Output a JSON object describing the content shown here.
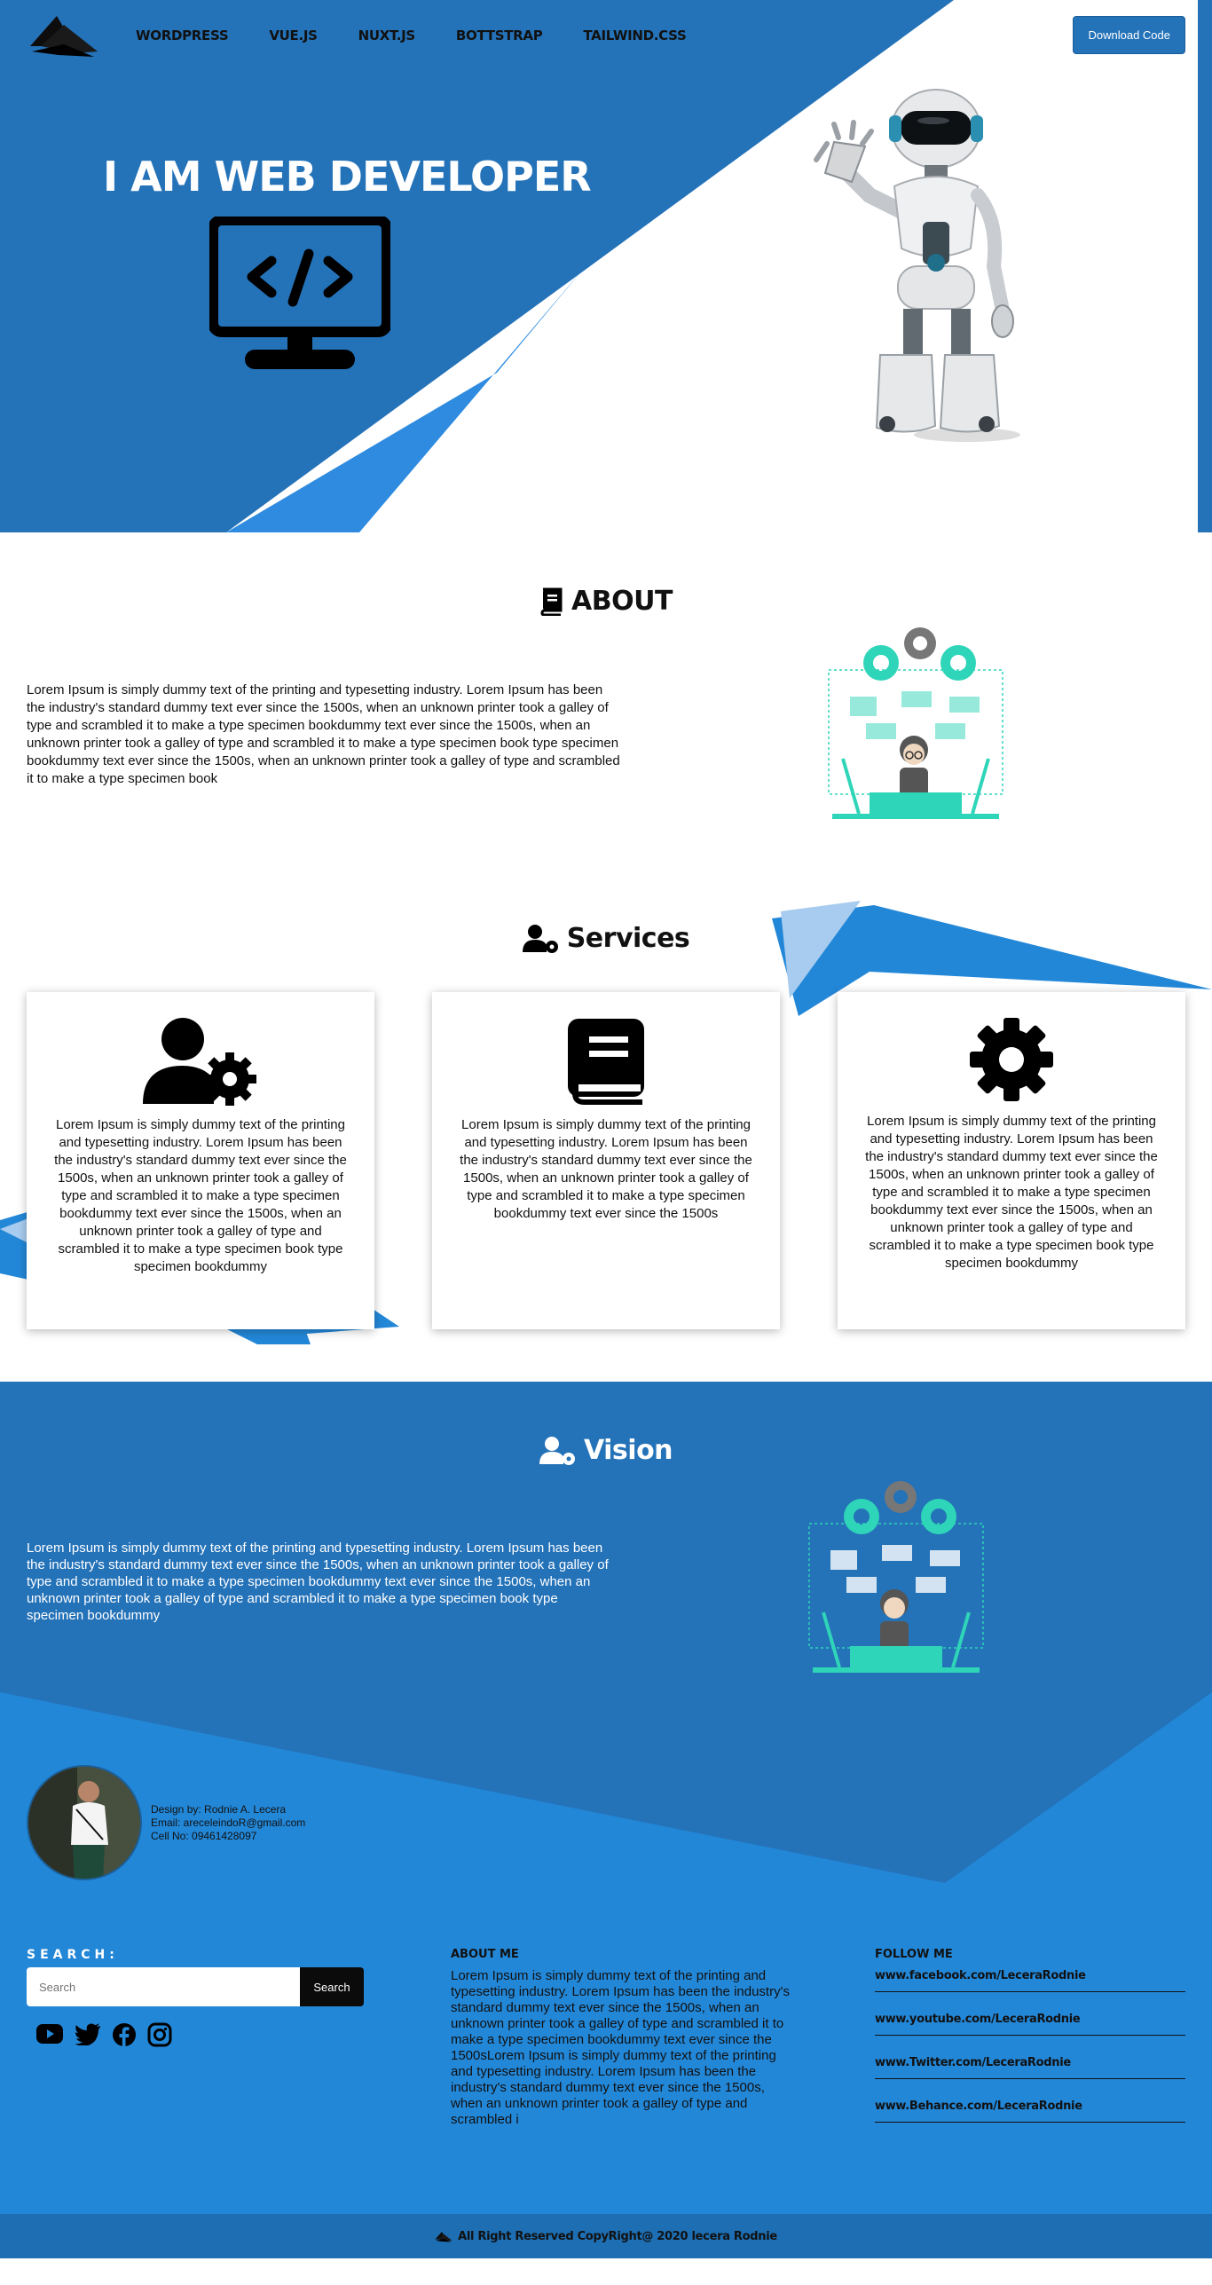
{
  "nav": {
    "links": [
      "WORDPRESS",
      "VUE.JS",
      "NUXT.JS",
      "BOTTSTRAP",
      "TAILWIND.CSS"
    ],
    "download_label": "Download Code"
  },
  "hero": {
    "title": "I AM WEB DEVELOPER"
  },
  "about": {
    "heading": "ABOUT",
    "text": "Lorem Ipsum is simply dummy text of the printing and typesetting industry. Lorem Ipsum has been the industry's standard dummy text ever since the 1500s, when an unknown printer took a galley of type and scrambled it to make a type specimen bookdummy text ever since the 1500s, when an unknown printer took a galley of type and scrambled it to make a type specimen book type specimen bookdummy text ever since the 1500s, when an unknown printer took a galley of type and scrambled it to make a type specimen book"
  },
  "services": {
    "heading": "Services",
    "cards": [
      {
        "icon": "user-gear-icon",
        "text": "Lorem Ipsum is simply dummy text of the printing and typesetting industry. Lorem Ipsum has been the industry's standard dummy text ever since the 1500s, when an unknown printer took a galley of type and scrambled it to make a type specimen bookdummy text ever since the 1500s, when an unknown printer took a galley of type and scrambled it to make a type specimen book type specimen bookdummy"
      },
      {
        "icon": "book-icon",
        "text": "Lorem Ipsum is simply dummy text of the printing and typesetting industry. Lorem Ipsum has been the industry's standard dummy text ever since the 1500s, when an unknown printer took a galley of type and scrambled it to make a type specimen bookdummy text ever since the 1500s"
      },
      {
        "icon": "gear-icon",
        "text": "Lorem Ipsum is simply dummy text of the printing and typesetting industry. Lorem Ipsum has been the industry's standard dummy text ever since the 1500s, when an unknown printer took a galley of type and scrambled it to make a type specimen bookdummy text ever since the 1500s, when an unknown printer took a galley of type and scrambled it to make a type specimen book type specimen bookdummy"
      }
    ]
  },
  "vision": {
    "heading": "Vision",
    "text": "Lorem Ipsum is simply dummy text of the printing and typesetting industry. Lorem Ipsum has been the industry's standard dummy text ever since the 1500s, when an unknown printer took a galley of type and scrambled it to make a type specimen bookdummy text ever since the 1500s, when an unknown printer took a galley of type and scrambled it to make a type specimen book type specimen bookdummy"
  },
  "profile": {
    "designer": "Design by: Rodnie A. Lecera",
    "email": "Email: areceleindoR@gmail.com",
    "cell": "Cell No: 09461428097"
  },
  "footer": {
    "search_label": "SEARCH:",
    "search_placeholder": "Search",
    "search_button": "Search",
    "social_icons": [
      "youtube-icon",
      "twitter-icon",
      "facebook-icon",
      "instagram-icon"
    ],
    "about_me_heading": "ABOUT ME",
    "about_me_text": "Lorem Ipsum is simply dummy text of the printing and typesetting industry. Lorem Ipsum has been the industry's standard dummy text ever since the 1500s, when an unknown printer took a galley of type and scrambled it to make a type specimen bookdummy text ever since the 1500sLorem Ipsum is simply dummy text of the printing and typesetting industry. Lorem Ipsum has been the industry's standard dummy text ever since the 1500s, when an unknown printer took a galley of type and scrambled i",
    "follow_heading": "FOLLOW ME",
    "follow_links": [
      "www.facebook.com/LeceraRodnie",
      "www.youtube.com/LeceraRodnie",
      "www.Twitter.com/LeceraRodnie",
      "www.Behance.com/LeceraRodnie"
    ]
  },
  "copyright": "All Right Reserved CopyRight@ 2020 lecera Rodnie",
  "colors": {
    "primary": "#2472b8",
    "accent": "#2387d8",
    "teal": "#2fd5b8"
  }
}
